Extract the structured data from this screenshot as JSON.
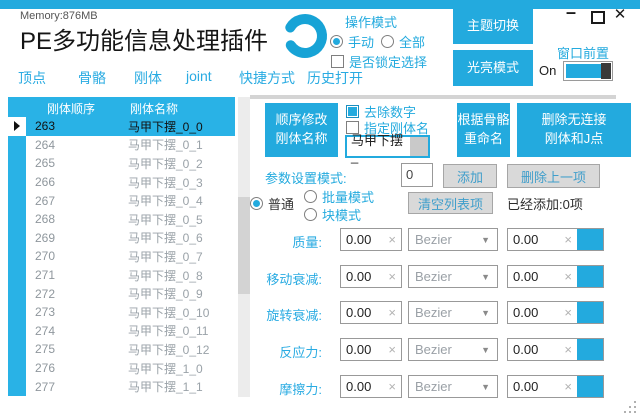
{
  "colors": {
    "accent": "#23aade",
    "table_header": "#29b2e6",
    "gray_button_bg": "#d9d9d9",
    "gray_button_text": "#3f9ecb",
    "toggle_knob": "#3a3a3a"
  },
  "titlebar": {
    "memory": "Memory:876MB",
    "title": "PE多功能信息处理插件",
    "minimize": "–",
    "close": "✕",
    "spinner_icon": "loading-ring"
  },
  "top_controls": {
    "operation_mode_label": "操作模式",
    "radio_manual": "手动",
    "radio_all": "全部",
    "lock_checkbox_label": "是否锁定选择",
    "theme_button": "主题切换",
    "bright_button": "光亮模式",
    "window_front_label": "窗口前置",
    "window_front_state": "On"
  },
  "tabs": [
    "顶点",
    "骨骼",
    "刚体",
    "joint",
    "快捷方式",
    "历史打开"
  ],
  "table": {
    "headers": [
      "刚体顺序",
      "刚体名称"
    ],
    "selected_index": 0,
    "rows": [
      {
        "order": "263",
        "name": "马甲下摆_0_0"
      },
      {
        "order": "264",
        "name": "马甲下摆_0_1"
      },
      {
        "order": "265",
        "name": "马甲下摆_0_2"
      },
      {
        "order": "266",
        "name": "马甲下摆_0_3"
      },
      {
        "order": "267",
        "name": "马甲下摆_0_4"
      },
      {
        "order": "268",
        "name": "马甲下摆_0_5"
      },
      {
        "order": "269",
        "name": "马甲下摆_0_6"
      },
      {
        "order": "270",
        "name": "马甲下摆_0_7"
      },
      {
        "order": "271",
        "name": "马甲下摆_0_8"
      },
      {
        "order": "272",
        "name": "马甲下摆_0_9"
      },
      {
        "order": "273",
        "name": "马甲下摆_0_10"
      },
      {
        "order": "274",
        "name": "马甲下摆_0_11"
      },
      {
        "order": "275",
        "name": "马甲下摆_0_12"
      },
      {
        "order": "276",
        "name": "马甲下摆_1_0"
      },
      {
        "order": "277",
        "name": "马甲下摆_1_1"
      }
    ]
  },
  "rename_panel": {
    "order_rename_line1": "顺序修改",
    "order_rename_line2": "刚体名称",
    "remove_digits_label": "去除数字",
    "remove_digits_checked": true,
    "specify_name_label": "指定刚体名",
    "specify_name_checked": false,
    "name_input_value": "马甲下摆_",
    "bone_rename_line1": "根据骨骼",
    "bone_rename_line2": "重命名",
    "delete_line1": "删除无连接",
    "delete_line2": "刚体和J点"
  },
  "param_panel": {
    "mode_label": "参数设置模式:",
    "count_value": "0",
    "add_button": "添加",
    "delete_last_button": "删除上一项",
    "radio_normal": "普通",
    "radio_batch": "批量模式",
    "radio_block": "块模式",
    "clear_button": "清空列表项",
    "added_label": "已经添加:0项"
  },
  "form": {
    "clear_icon": "×",
    "dropdown_icon": "▼",
    "rows": [
      {
        "label": "质量:",
        "value1": "0.00",
        "curve": "Bezier",
        "value2": "0.00"
      },
      {
        "label": "移动衰减:",
        "value1": "0.00",
        "curve": "Bezier",
        "value2": "0.00"
      },
      {
        "label": "旋转衰减:",
        "value1": "0.00",
        "curve": "Bezier",
        "value2": "0.00"
      },
      {
        "label": "反应力:",
        "value1": "0.00",
        "curve": "Bezier",
        "value2": "0.00"
      },
      {
        "label": "摩擦力:",
        "value1": "0.00",
        "curve": "Bezier",
        "value2": "0.00"
      }
    ],
    "row_tops": [
      228,
      265,
      301,
      338,
      375
    ]
  }
}
